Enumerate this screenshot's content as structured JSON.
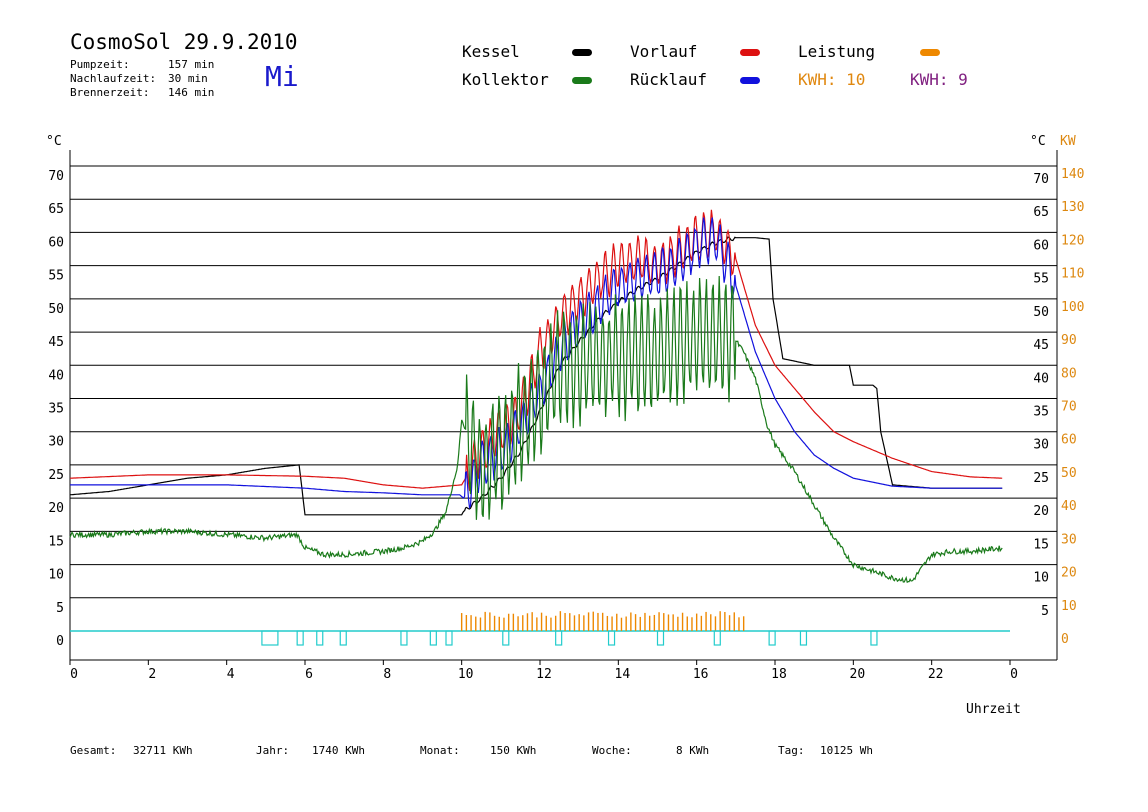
{
  "header": {
    "title": "CosmoSol 29.9.2010",
    "weekday": "Mi",
    "weekday_color": "#1a1acc",
    "info": [
      {
        "label": "Pumpzeit:",
        "value": "157 min"
      },
      {
        "label": "Nachlaufzeit:",
        "value": "30 min"
      },
      {
        "label": "Brennerzeit:",
        "value": "146 min"
      }
    ]
  },
  "legend": {
    "kessel": {
      "label": "Kessel",
      "color": "#000000"
    },
    "kollektor": {
      "label": "Kollektor",
      "color": "#1a7a1a"
    },
    "vorlauf": {
      "label": "Vorlauf",
      "color": "#dd1111"
    },
    "ruecklauf": {
      "label": "Rücklauf",
      "color": "#1111dd"
    },
    "leistung": {
      "label": "Leistung",
      "color": "#ee8800"
    },
    "kwh1": {
      "label": "KWH: 10",
      "color": "#e08810"
    },
    "kwh2": {
      "label": "KWH: 9",
      "color": "#802080"
    }
  },
  "footer": {
    "gesamt": {
      "label": "Gesamt:",
      "value": "32711 KWh"
    },
    "jahr": {
      "label": "Jahr:",
      "value": "1740 KWh"
    },
    "monat": {
      "label": "Monat:",
      "value": "150 KWh"
    },
    "woche": {
      "label": "Woche:",
      "value": "8 KWh"
    },
    "tag": {
      "label": "Tag:",
      "value": "10125 Wh"
    }
  },
  "chart_data": {
    "type": "line",
    "xlabel": "Uhrzeit",
    "ylabel_left": "°C",
    "ylabel_right": "°C",
    "ylabel_right2": "KW",
    "xlim": [
      0,
      24
    ],
    "ylim": [
      0,
      70
    ],
    "y2lim": [
      0,
      140
    ],
    "grid": true,
    "x_ticks": [
      "0",
      "2",
      "4",
      "6",
      "8",
      "10",
      "12",
      "14",
      "16",
      "18",
      "20",
      "22",
      "0"
    ],
    "y_ticks_left": [
      "0",
      "5",
      "10",
      "15",
      "20",
      "25",
      "30",
      "35",
      "40",
      "45",
      "50",
      "55",
      "60",
      "65",
      "70"
    ],
    "y_ticks_right": [
      "5",
      "10",
      "15",
      "20",
      "25",
      "30",
      "35",
      "40",
      "45",
      "50",
      "55",
      "60",
      "65",
      "70"
    ],
    "y2_ticks": [
      "0",
      "10",
      "20",
      "30",
      "40",
      "50",
      "60",
      "70",
      "80",
      "90",
      "100",
      "110",
      "120",
      "130",
      "140"
    ],
    "series": [
      {
        "name": "Kessel",
        "color": "#000000",
        "x": [
          0,
          1,
          2,
          3,
          4,
          5,
          5.85,
          5.95,
          6.0,
          7,
          8,
          9,
          10,
          10.05,
          10.5,
          11,
          11.5,
          12,
          12.5,
          13,
          13.5,
          14,
          14.5,
          15,
          15.5,
          16,
          16.5,
          17,
          17.5,
          17.85,
          17.95,
          18.2,
          19,
          19.9,
          20.0,
          20.5,
          20.6,
          20.7,
          21,
          22,
          23.8
        ],
        "y": [
          20.5,
          21,
          22,
          23,
          23.5,
          24.5,
          25,
          20,
          17.5,
          17.5,
          17.5,
          17.5,
          17.5,
          18,
          20,
          23,
          27,
          33,
          40,
          43.5,
          47,
          49.5,
          51.5,
          53,
          55,
          57,
          58.5,
          59.2,
          59.2,
          59,
          50,
          41,
          40,
          40,
          37,
          37,
          36.5,
          30,
          22,
          21.5,
          21.5
        ]
      },
      {
        "name": "Vorlauf",
        "color": "#dd1111",
        "x": [
          0,
          2,
          4,
          6,
          7,
          8,
          9,
          10,
          10.5,
          11,
          11.5,
          12,
          12.5,
          13,
          13.5,
          14,
          14.5,
          15,
          15.5,
          16,
          16.5,
          17,
          17.5,
          18,
          18.5,
          19,
          19.5,
          20,
          21,
          22,
          23,
          23.8
        ],
        "y": [
          23,
          23.5,
          23.5,
          23.3,
          23,
          22,
          21.5,
          22,
          27,
          30,
          33,
          42,
          47,
          50,
          53,
          55,
          56,
          55,
          57,
          59,
          60,
          56,
          46,
          40,
          36.5,
          33,
          30,
          28.5,
          26,
          24,
          23.2,
          23
        ]
      },
      {
        "name": "Rücklauf",
        "color": "#1111dd",
        "x": [
          0,
          2,
          4,
          6,
          7,
          8,
          9,
          9.95,
          10.05,
          10.5,
          11,
          11.5,
          12,
          12.5,
          13,
          13.5,
          14,
          14.5,
          15,
          15.5,
          16,
          16.5,
          17,
          17.5,
          18,
          18.5,
          19,
          19.5,
          20,
          21,
          22,
          23.8
        ],
        "y": [
          22,
          22,
          22,
          21.5,
          21,
          20.8,
          20.5,
          20.5,
          20,
          25,
          27,
          31,
          36,
          42,
          46,
          49,
          52,
          53,
          54,
          55,
          58,
          59,
          52,
          42,
          35,
          30,
          26.5,
          24.5,
          23,
          21.8,
          21.5,
          21.5
        ]
      },
      {
        "name": "Kollektor",
        "color": "#1a7a1a",
        "x": [
          0,
          1,
          2,
          3,
          4,
          5,
          5.8,
          6,
          6.5,
          7,
          8,
          8.5,
          9,
          9.3,
          9.6,
          9.9,
          10,
          10.5,
          11,
          11.5,
          12,
          12.3,
          12.6,
          13,
          13.5,
          14,
          14.5,
          15,
          15.5,
          16,
          16.5,
          16.9,
          17.2,
          17.5,
          17.8,
          18,
          18.5,
          19,
          19.5,
          20,
          20.5,
          21,
          21.5,
          22,
          22.5,
          23,
          23.8
        ],
        "y": [
          14.5,
          14.5,
          15,
          15,
          14.5,
          14,
          14.5,
          12.5,
          11.5,
          11.5,
          12,
          12.5,
          13.5,
          15,
          18,
          25,
          32,
          24,
          27,
          31,
          35,
          38,
          40,
          40,
          41,
          41,
          42,
          42,
          43,
          44,
          44,
          44.5,
          42,
          38,
          31,
          28,
          24,
          19,
          14,
          10,
          9,
          8,
          7.5,
          11.5,
          12,
          12,
          12.5
        ]
      }
    ],
    "power_bars": {
      "name": "Leistung",
      "color": "#ee8800",
      "approx_range_hours": [
        10,
        17.2
      ],
      "peak_kw": 12
    }
  }
}
